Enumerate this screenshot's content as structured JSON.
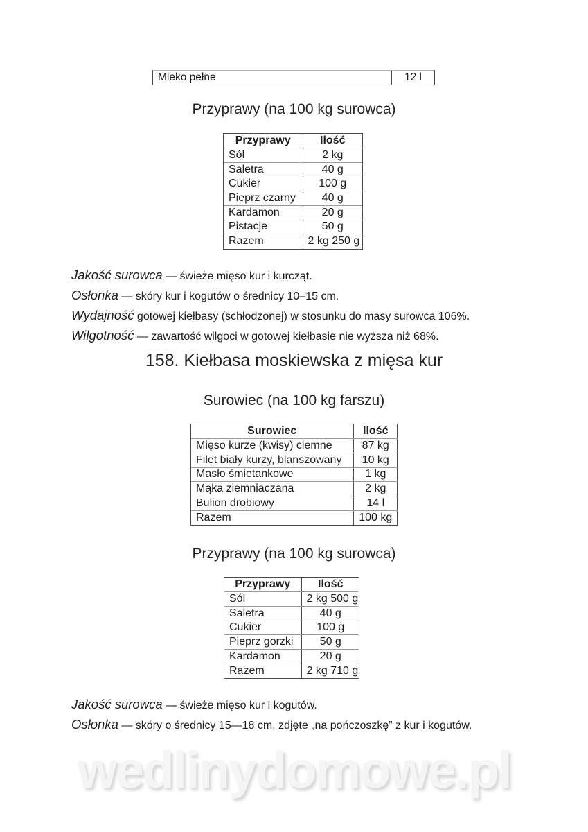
{
  "page": {
    "continued_row": {
      "name": "Mleko pełne",
      "qty": "12 l"
    },
    "spices1": {
      "heading": "Przyprawy (na 100 kg surowca)",
      "table": {
        "headers": [
          "Przyprawy",
          "Ilość"
        ],
        "rows": [
          [
            "Sól",
            "2 kg"
          ],
          [
            "Saletra",
            "40 g"
          ],
          [
            "Cukier",
            "100 g"
          ],
          [
            "Pieprz czarny",
            "40 g"
          ],
          [
            "Kardamon",
            "20 g"
          ],
          [
            "Pistacje",
            "50 g"
          ],
          [
            "Razem",
            "2 kg 250 g"
          ]
        ]
      }
    },
    "notes1": [
      {
        "lead": "Jakość surowca",
        "rest": " — świeże mięso kur i kurcząt."
      },
      {
        "lead": "Osłonka",
        "rest": " — skóry kur i kogutów o średnicy 10–15 cm."
      },
      {
        "lead": "Wydajność",
        "rest": " gotowej kiełbasy (schłodzonej) w stosunku do masy surowca 106%."
      },
      {
        "lead": "Wilgotność",
        "rest": " — zawartość wilgoci w gotowej kiełbasie nie wyższa niż 68%."
      }
    ],
    "recipe158": {
      "title": "158. Kiełbasa moskiewska z mięsa kur",
      "raw_heading": "Surowiec (na 100 kg farszu)",
      "raw_table": {
        "headers": [
          "Surowiec",
          "Ilość"
        ],
        "rows": [
          [
            "Mięso kurze (kwisy) ciemne",
            "87 kg"
          ],
          [
            "Filet biały kurzy, blanszowany",
            "10 kg"
          ],
          [
            "Masło śmietankowe",
            "1 kg"
          ],
          [
            "Mąka ziemniaczana",
            "2 kg"
          ],
          [
            "Bulion drobiowy",
            "14 l"
          ],
          [
            "Razem",
            "100 kg"
          ]
        ]
      },
      "spices_heading": "Przyprawy (na 100 kg surowca)",
      "spices_table": {
        "headers": [
          "Przyprawy",
          "Ilość"
        ],
        "rows": [
          [
            "Sól",
            "2 kg 500 g"
          ],
          [
            "Saletra",
            "40 g"
          ],
          [
            "Cukier",
            "100 g"
          ],
          [
            "Pieprz gorzki",
            "50 g"
          ],
          [
            "Kardamon",
            "20 g"
          ],
          [
            "Razem",
            "2 kg 710 g"
          ]
        ]
      }
    },
    "notes2": [
      {
        "lead": "Jakość surowca",
        "rest": " — świeże mięso kur i kogutów."
      },
      {
        "lead": "Osłonka",
        "rest": " — skóry o średnicy 15—18 cm, zdjęte „na pończoszkę” z kur i kogutów."
      }
    ],
    "watermark": "wedlinydomowe.pl"
  }
}
